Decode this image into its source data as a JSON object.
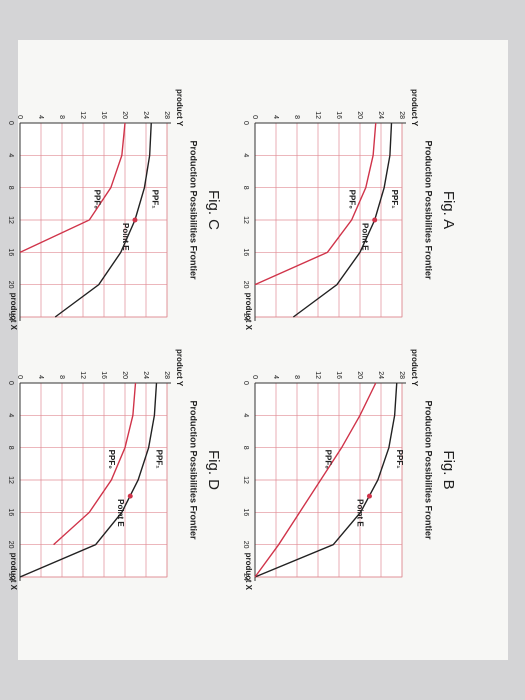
{
  "chart_data": [
    {
      "type": "line",
      "title": "Fig. A",
      "subtitle": "Production Possibilities Frontier",
      "x_label": "product X",
      "y_label": "product Y",
      "x": [
        0,
        4,
        8,
        12,
        16,
        20,
        24
      ],
      "xlim": [
        0,
        24
      ],
      "xticks": [
        0,
        4,
        8,
        12,
        16,
        20,
        24
      ],
      "ylim": [
        0,
        28
      ],
      "yticks": [
        0,
        4,
        8,
        12,
        16,
        20,
        24,
        28
      ],
      "grid": true,
      "series": [
        {
          "name": "PPF₁",
          "color": "#222222",
          "values": [
            26,
            25.7,
            24.6,
            22.8,
            20,
            15.6,
            7.3
          ]
        },
        {
          "name": "PPF₀",
          "color": "#d0344a",
          "values": [
            23,
            22.5,
            21.1,
            18.4,
            13.8,
            0,
            null
          ]
        }
      ],
      "point": {
        "label": "Point E",
        "x": 12,
        "y": 22.8
      }
    },
    {
      "type": "line",
      "title": "Fig. B",
      "subtitle": "Production Possibilities Frontier",
      "x_label": "product X",
      "y_label": "product Y",
      "x": [
        0,
        4,
        8,
        12,
        16,
        20,
        24
      ],
      "xlim": [
        0,
        24
      ],
      "xticks": [
        0,
        4,
        8,
        12,
        16,
        20,
        24
      ],
      "ylim": [
        0,
        28
      ],
      "yticks": [
        0,
        4,
        8,
        12,
        16,
        20,
        24,
        28
      ],
      "grid": true,
      "series": [
        {
          "name": "PPF₁",
          "color": "#222222",
          "values": [
            27,
            26.6,
            25.5,
            23.4,
            20.1,
            14.9,
            0
          ]
        },
        {
          "name": "PPF₀",
          "color": "#d0344a",
          "values": [
            23,
            20,
            16.5,
            12.5,
            8.5,
            4.5,
            0
          ]
        }
      ],
      "point": {
        "label": "Point E",
        "x": 14,
        "y": 21.8
      }
    },
    {
      "type": "line",
      "title": "Fig. C",
      "subtitle": "Production Possibilities Frontier",
      "x_label": "product X",
      "y_label": "product Y",
      "x": [
        0,
        4,
        8,
        12,
        16,
        20,
        24
      ],
      "xlim": [
        0,
        24
      ],
      "xticks": [
        0,
        4,
        8,
        12,
        16,
        20,
        24
      ],
      "ylim": [
        0,
        28
      ],
      "yticks": [
        0,
        4,
        8,
        12,
        16,
        20,
        24,
        28
      ],
      "grid": true,
      "series": [
        {
          "name": "PPF₁",
          "color": "#222222",
          "values": [
            25,
            24.7,
            23.7,
            21.9,
            19.2,
            15,
            6.7
          ]
        },
        {
          "name": "PPF₀",
          "color": "#d0344a",
          "values": [
            20,
            19.4,
            17.3,
            13.2,
            0,
            null,
            null
          ]
        }
      ],
      "point": {
        "label": "Point E",
        "x": 12,
        "y": 21.9
      }
    },
    {
      "type": "line",
      "title": "Fig. D",
      "subtitle": "Production Possibilities Frontier",
      "x_label": "product X",
      "y_label": "product Y",
      "x": [
        0,
        4,
        8,
        12,
        16,
        20,
        24
      ],
      "xlim": [
        0,
        24
      ],
      "xticks": [
        0,
        4,
        8,
        12,
        16,
        20,
        24
      ],
      "ylim": [
        0,
        28
      ],
      "yticks": [
        0,
        4,
        8,
        12,
        16,
        20,
        24,
        28
      ],
      "grid": true,
      "series": [
        {
          "name": "PPF₁",
          "color": "#222222",
          "values": [
            26,
            25.6,
            24.5,
            22.5,
            19.4,
            14.4,
            0
          ]
        },
        {
          "name": "PPF₀",
          "color": "#d0344a",
          "values": [
            22,
            21.5,
            20,
            17.4,
            13.2,
            6.4,
            null
          ]
        }
      ],
      "point": {
        "label": "Point E",
        "x": 14,
        "y": 21
      }
    }
  ]
}
